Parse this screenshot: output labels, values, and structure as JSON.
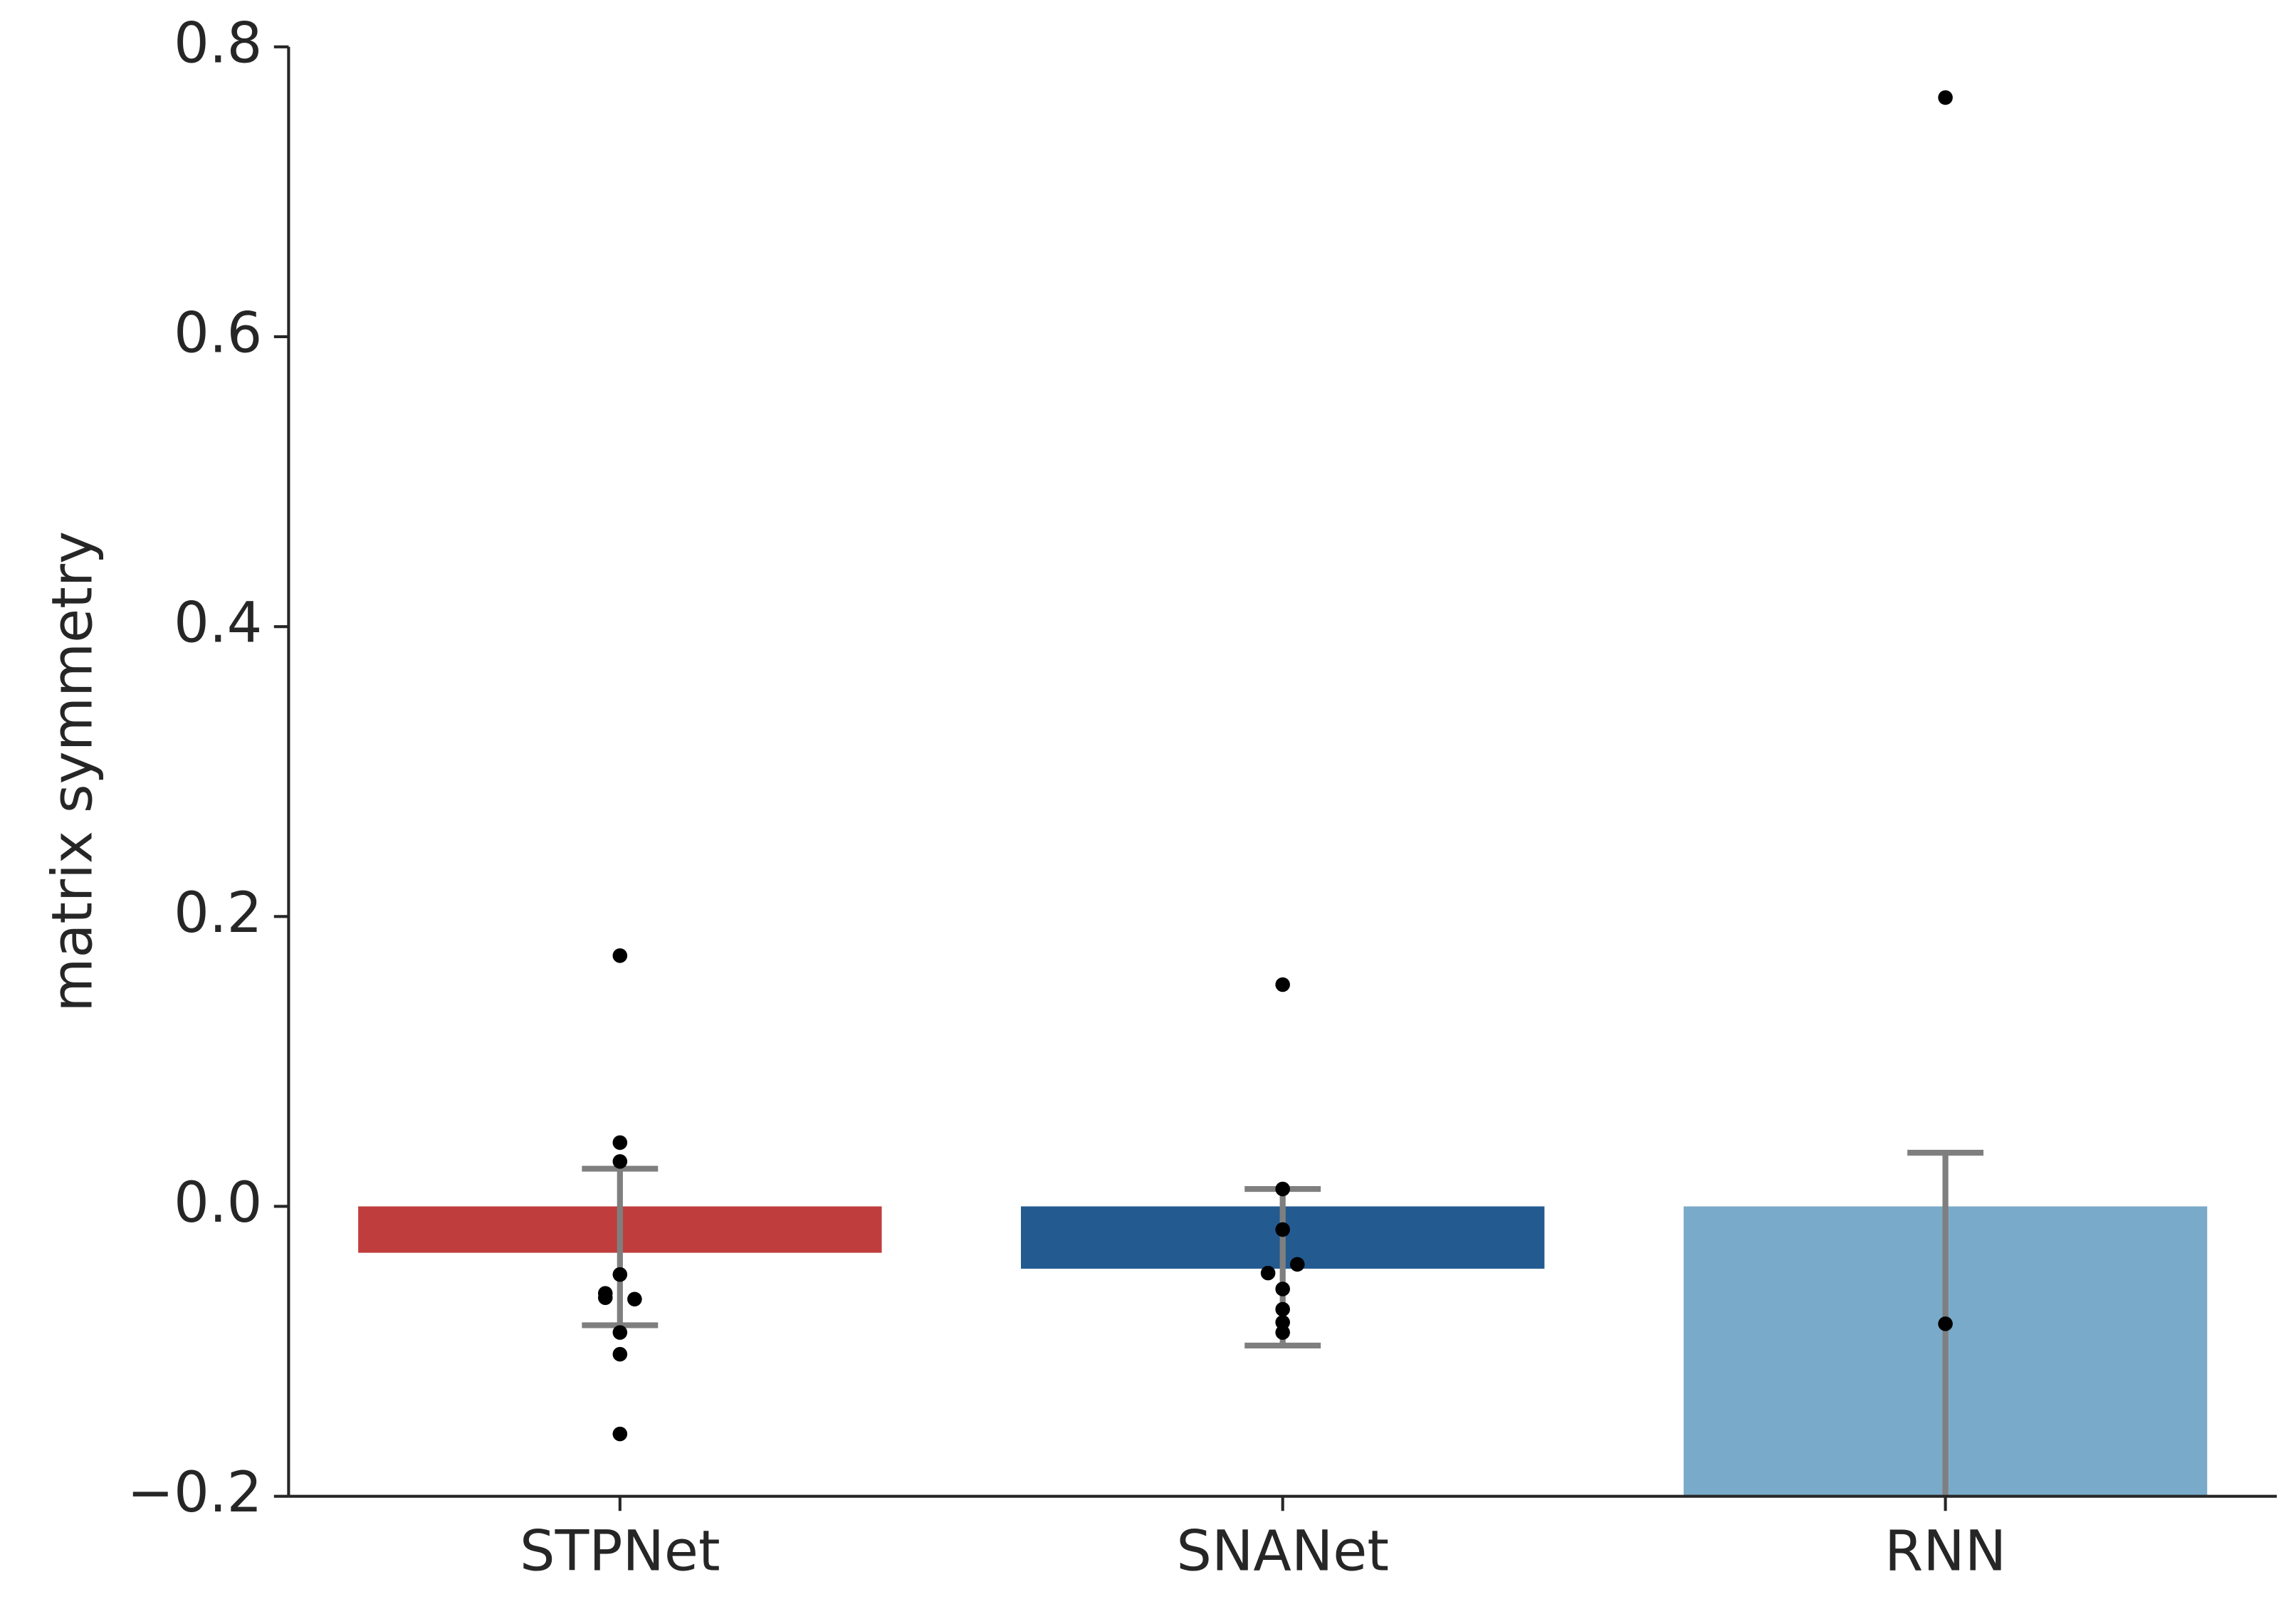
{
  "chart_data": {
    "type": "bar",
    "ylabel": "matrix symmetry",
    "categories": [
      "STPNet",
      "SNANet",
      "RNN"
    ],
    "values": [
      -0.032,
      -0.043,
      -0.2
    ],
    "colors": [
      "#c03d3e",
      "#235b91",
      "#7aaac9"
    ],
    "ci_low": [
      -0.082,
      -0.096,
      -0.2
    ],
    "ci_high": [
      0.026,
      0.012,
      0.037
    ],
    "points": [
      [
        0.173,
        0.044,
        0.031,
        -0.047,
        -0.06,
        -0.064,
        -0.063,
        -0.087,
        -0.102,
        -0.157
      ],
      [
        0.153,
        0.012,
        -0.016,
        -0.04,
        -0.046,
        -0.057,
        -0.071,
        -0.08,
        -0.087
      ],
      [
        0.765,
        -0.081
      ]
    ],
    "ylim": [
      -0.2,
      0.8
    ],
    "yticks": [
      {
        "value": -0.2,
        "label": "−0.2"
      },
      {
        "value": 0,
        "label": "0.0"
      },
      0.2,
      0.4,
      0.6,
      0.8
    ]
  }
}
